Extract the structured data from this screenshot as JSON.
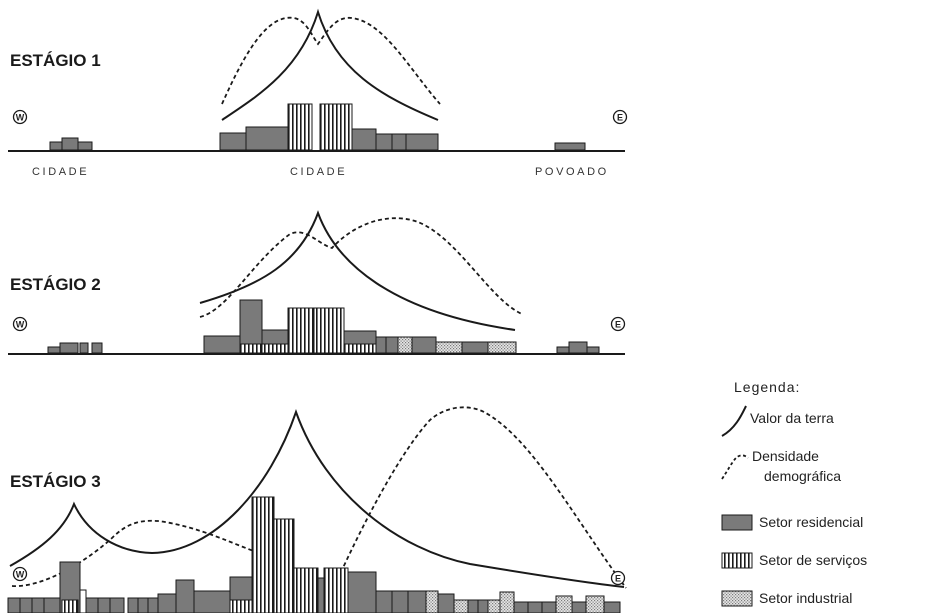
{
  "stages": [
    {
      "title": "ESTÁGIO 1",
      "west": "W",
      "east": "E",
      "places": [
        "CIDADE",
        "CIDADE",
        "POVOADO"
      ]
    },
    {
      "title": "ESTÁGIO 2",
      "west": "W",
      "east": "E",
      "places": []
    },
    {
      "title": "ESTÁGIO 3",
      "west": "W",
      "east": "E",
      "places": []
    }
  ],
  "legend": {
    "title": "Legenda:",
    "land_value": "Valor da terra",
    "density_line1": "Densidade",
    "density_line2": "demográfica",
    "residential": "Setor residencial",
    "services": "Setor de serviços",
    "industrial": "Setor industrial"
  },
  "colors": {
    "residential": "#7a7a7a",
    "line": "#1a1a1a",
    "industrial": "#c8c8c8"
  }
}
